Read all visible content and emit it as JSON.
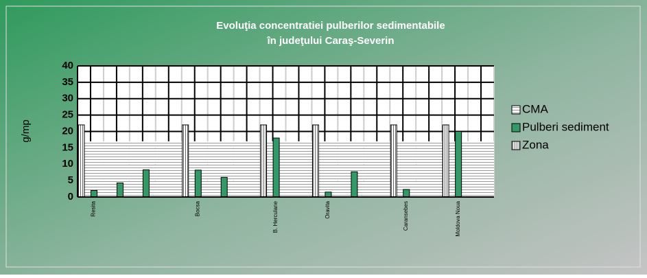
{
  "chart_data": {
    "type": "bar",
    "title": "Evoluţia concentratiei  pulberilor sedimentabile",
    "subtitle": "în judeţului Caraş-Severin",
    "y_label": "g/mp",
    "categories": [
      "Resita",
      null,
      null,
      null,
      "Bocsa",
      null,
      null,
      "B. Herculane",
      null,
      "Oravita",
      null,
      null,
      "Caransebes",
      null,
      "Moldova Noua",
      null
    ],
    "series": [
      {
        "name": "CMA",
        "color": "#ffffff",
        "values": [
          17,
          17,
          17,
          17,
          17,
          17,
          17,
          17,
          17,
          17,
          17,
          17,
          17,
          17,
          17,
          17
        ]
      },
      {
        "name": "Pulberi sediment",
        "color": "#339966",
        "values": [
          2,
          4.3,
          8.3,
          null,
          8.2,
          6,
          null,
          18,
          null,
          1.5,
          7.7,
          null,
          2.3,
          null,
          20,
          null
        ]
      },
      {
        "name": "Zona",
        "color": "#ffffff",
        "values": [
          22,
          null,
          null,
          null,
          22,
          null,
          null,
          22,
          null,
          22,
          null,
          null,
          22,
          null,
          22,
          null
        ]
      }
    ],
    "ylim": [
      0,
      40
    ],
    "yticks": [
      0,
      5,
      10,
      15,
      20,
      25,
      30,
      35,
      40
    ],
    "grid": true,
    "legend": "right"
  }
}
